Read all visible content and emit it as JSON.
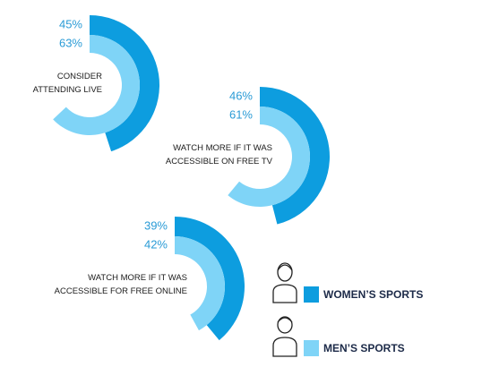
{
  "chart_data": {
    "type": "radial_bar",
    "categories": [
      "CONSIDER\nATTENDING LIVE",
      "WATCH MORE IF IT WAS\nACCESSIBLE ON FREE TV",
      "WATCH MORE IF IT WAS\nACCESSIBLE FOR FREE ONLINE"
    ],
    "series": [
      {
        "name": "WOMEN’S SPORTS",
        "color": "#0d9ddf",
        "values": [
          45,
          46,
          39
        ],
        "value_labels": [
          "45%",
          "46%",
          "39%"
        ]
      },
      {
        "name": "MEN’S SPORTS",
        "color": "#7fd4f7",
        "values": [
          63,
          61,
          42
        ],
        "value_labels": [
          "63%",
          "61%",
          "42%"
        ]
      }
    ],
    "ylim": [
      0,
      100
    ]
  }
}
